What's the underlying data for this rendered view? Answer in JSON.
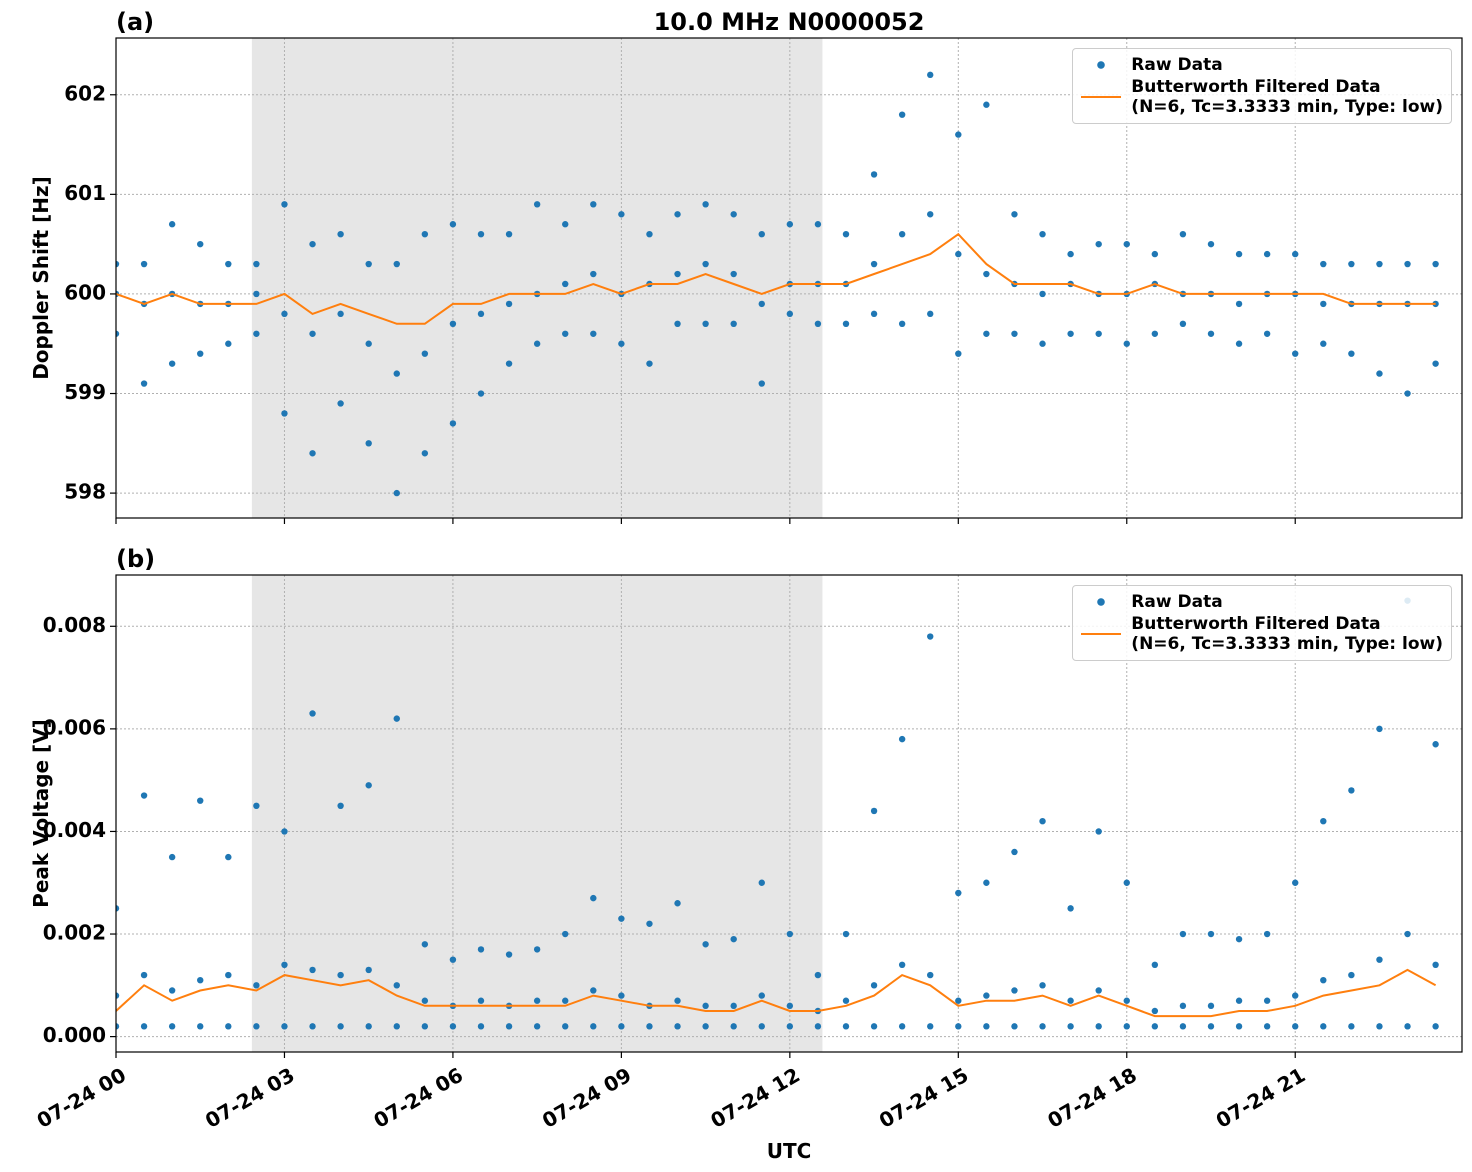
{
  "chart_data": [
    {
      "type": "scatter",
      "panel_label": "(a)",
      "title": "10.0 MHz N0000052",
      "y_label": "Doppler Shift [Hz]",
      "xlim": [
        0,
        23.97
      ],
      "xticks": [
        0,
        3,
        6,
        9,
        12,
        15,
        18,
        21
      ],
      "ylim": [
        597.75,
        602.57
      ],
      "yticks": [
        598,
        599,
        600,
        601,
        602
      ],
      "grid": true,
      "shaded_span": [
        2.42,
        12.58
      ],
      "legend": "upper right",
      "series": [
        {
          "name": "Raw Data",
          "style": "markers",
          "color": "#1f77b4",
          "x": [
            0,
            0,
            0,
            0.5,
            0.5,
            0.5,
            1,
            1,
            1,
            1.5,
            1.5,
            1.5,
            2,
            2,
            2,
            2.5,
            2.5,
            2.5,
            3,
            3,
            3,
            3.5,
            3.5,
            3.5,
            4,
            4,
            4,
            4.5,
            4.5,
            4.5,
            5,
            5,
            5,
            5.5,
            5.5,
            5.5,
            6,
            6,
            6,
            6.5,
            6.5,
            6.5,
            7,
            7,
            7,
            7.5,
            7.5,
            7.5,
            8,
            8,
            8,
            8.5,
            8.5,
            8.5,
            9,
            9,
            9,
            9.5,
            9.5,
            9.5,
            10,
            10,
            10,
            10.5,
            10.5,
            10.5,
            11,
            11,
            11,
            11.5,
            11.5,
            11.5,
            12,
            12,
            12,
            12.5,
            12.5,
            12.5,
            13,
            13,
            13,
            13.5,
            13.5,
            13.5,
            14,
            14,
            14,
            14.5,
            14.5,
            14.5,
            15,
            15,
            15,
            15.5,
            15.5,
            15.5,
            16,
            16,
            16,
            16.5,
            16.5,
            16.5,
            17,
            17,
            17,
            17.5,
            17.5,
            17.5,
            18,
            18,
            18,
            18.5,
            18.5,
            18.5,
            19,
            19,
            19,
            19.5,
            19.5,
            19.5,
            20,
            20,
            20,
            20.5,
            20.5,
            20.5,
            21,
            21,
            21,
            21.5,
            21.5,
            21.5,
            22,
            22,
            22,
            22.5,
            22.5,
            22.5,
            23,
            23,
            23,
            23.5,
            23.5,
            23.5
          ],
          "values": [
            600.3,
            600.0,
            599.6,
            600.3,
            599.9,
            599.1,
            600.7,
            600.0,
            599.3,
            600.5,
            599.9,
            599.4,
            600.3,
            599.9,
            599.5,
            600.3,
            600.0,
            599.6,
            600.9,
            599.8,
            598.8,
            600.5,
            599.6,
            598.4,
            600.6,
            599.8,
            598.9,
            600.3,
            599.5,
            598.5,
            600.3,
            599.2,
            598.0,
            600.6,
            599.4,
            598.4,
            600.7,
            599.7,
            598.7,
            600.6,
            599.8,
            599.0,
            600.6,
            599.9,
            599.3,
            600.9,
            600.0,
            599.5,
            600.7,
            600.1,
            599.6,
            600.9,
            600.2,
            599.6,
            600.8,
            600.0,
            599.5,
            600.6,
            600.1,
            599.3,
            600.8,
            600.2,
            599.7,
            600.9,
            600.3,
            599.7,
            600.8,
            600.2,
            599.7,
            600.6,
            599.9,
            599.1,
            600.7,
            600.1,
            599.8,
            600.7,
            600.1,
            599.7,
            600.6,
            600.1,
            599.7,
            601.2,
            600.3,
            599.8,
            601.8,
            600.6,
            599.7,
            602.2,
            600.8,
            599.8,
            601.6,
            600.4,
            599.4,
            601.9,
            600.2,
            599.6,
            600.8,
            600.1,
            599.6,
            600.6,
            600.0,
            599.5,
            600.4,
            600.1,
            599.6,
            600.5,
            600.0,
            599.6,
            600.5,
            600.0,
            599.5,
            600.4,
            600.1,
            599.6,
            600.6,
            600.0,
            599.7,
            600.5,
            600.0,
            599.6,
            600.4,
            599.9,
            599.5,
            600.4,
            600.0,
            599.6,
            600.4,
            600.0,
            599.4,
            600.3,
            599.9,
            599.5,
            600.3,
            599.9,
            599.4,
            600.3,
            599.9,
            599.2,
            600.3,
            599.9,
            599.0,
            600.3,
            599.9,
            599.3
          ]
        },
        {
          "name": "Butterworth Filtered Data\n(N=6, Tc=3.3333 min, Type: low)",
          "style": "line",
          "color": "#ff7f0e",
          "x": [
            0,
            0.5,
            1,
            1.5,
            2,
            2.5,
            3,
            3.5,
            4,
            4.5,
            5,
            5.5,
            6,
            6.5,
            7,
            7.5,
            8,
            8.5,
            9,
            9.5,
            10,
            10.5,
            11,
            11.5,
            12,
            12.5,
            13,
            13.5,
            14,
            14.5,
            15,
            15.5,
            16,
            16.5,
            17,
            17.5,
            18,
            18.5,
            19,
            19.5,
            20,
            20.5,
            21,
            21.5,
            22,
            22.5,
            23,
            23.5
          ],
          "values": [
            600.0,
            599.9,
            600.0,
            599.9,
            599.9,
            599.9,
            600.0,
            599.8,
            599.9,
            599.8,
            599.7,
            599.7,
            599.9,
            599.9,
            600.0,
            600.0,
            600.0,
            600.1,
            600.0,
            600.1,
            600.1,
            600.2,
            600.1,
            600.0,
            600.1,
            600.1,
            600.1,
            600.2,
            600.3,
            600.4,
            600.6,
            600.3,
            600.1,
            600.1,
            600.1,
            600.0,
            600.0,
            600.1,
            600.0,
            600.0,
            600.0,
            600.0,
            600.0,
            600.0,
            599.9,
            599.9,
            599.9,
            599.9
          ]
        }
      ]
    },
    {
      "type": "scatter",
      "panel_label": "(b)",
      "y_label": "Peak Voltage [V]",
      "x_label": "UTC",
      "xlim": [
        0,
        23.97
      ],
      "xticks": [
        {
          "value": 0,
          "label": "07-24 00"
        },
        {
          "value": 3,
          "label": "07-24 03"
        },
        {
          "value": 6,
          "label": "07-24 06"
        },
        {
          "value": 9,
          "label": "07-24 09"
        },
        {
          "value": 12,
          "label": "07-24 12"
        },
        {
          "value": 15,
          "label": "07-24 15"
        },
        {
          "value": 18,
          "label": "07-24 18"
        },
        {
          "value": 21,
          "label": "07-24 21"
        }
      ],
      "ylim": [
        -0.0003,
        0.009
      ],
      "yticks": [
        {
          "value": 0,
          "label": "0.000"
        },
        {
          "value": 0.002,
          "label": "0.002"
        },
        {
          "value": 0.004,
          "label": "0.004"
        },
        {
          "value": 0.006,
          "label": "0.006"
        },
        {
          "value": 0.008,
          "label": "0.008"
        }
      ],
      "grid": true,
      "shaded_span": [
        2.42,
        12.58
      ],
      "legend": "upper right",
      "series": [
        {
          "name": "Raw Data",
          "style": "markers",
          "color": "#1f77b4",
          "x": [
            0,
            0,
            0,
            0.5,
            0.5,
            0.5,
            1,
            1,
            1,
            1.5,
            1.5,
            1.5,
            2,
            2,
            2,
            2.5,
            2.5,
            2.5,
            3,
            3,
            3,
            3.5,
            3.5,
            3.5,
            4,
            4,
            4,
            4.5,
            4.5,
            4.5,
            5,
            5,
            5,
            5.5,
            5.5,
            5.5,
            6,
            6,
            6,
            6.5,
            6.5,
            6.5,
            7,
            7,
            7,
            7.5,
            7.5,
            7.5,
            8,
            8,
            8,
            8.5,
            8.5,
            8.5,
            9,
            9,
            9,
            9.5,
            9.5,
            9.5,
            10,
            10,
            10,
            10.5,
            10.5,
            10.5,
            11,
            11,
            11,
            11.5,
            11.5,
            11.5,
            12,
            12,
            12,
            12.5,
            12.5,
            12.5,
            13,
            13,
            13,
            13.5,
            13.5,
            13.5,
            14,
            14,
            14,
            14.5,
            14.5,
            14.5,
            15,
            15,
            15,
            15.5,
            15.5,
            15.5,
            16,
            16,
            16,
            16.5,
            16.5,
            16.5,
            17,
            17,
            17,
            17.5,
            17.5,
            17.5,
            18,
            18,
            18,
            18.5,
            18.5,
            18.5,
            19,
            19,
            19,
            19.5,
            19.5,
            19.5,
            20,
            20,
            20,
            20.5,
            20.5,
            20.5,
            21,
            21,
            21,
            21.5,
            21.5,
            21.5,
            22,
            22,
            22,
            22.5,
            22.5,
            22.5,
            23,
            23,
            23,
            23.5,
            23.5,
            23.5
          ],
          "values": [
            0.0025,
            0.0008,
            0.0002,
            0.0047,
            0.0012,
            0.0002,
            0.0035,
            0.0009,
            0.0002,
            0.0046,
            0.0011,
            0.0002,
            0.0035,
            0.0012,
            0.0002,
            0.0045,
            0.001,
            0.0002,
            0.004,
            0.0014,
            0.0002,
            0.0063,
            0.0013,
            0.0002,
            0.0045,
            0.0012,
            0.0002,
            0.0049,
            0.0013,
            0.0002,
            0.0062,
            0.001,
            0.0002,
            0.0018,
            0.0007,
            0.0002,
            0.0015,
            0.0006,
            0.0002,
            0.0017,
            0.0007,
            0.0002,
            0.0016,
            0.0006,
            0.0002,
            0.0017,
            0.0007,
            0.0002,
            0.002,
            0.0007,
            0.0002,
            0.0027,
            0.0009,
            0.0002,
            0.0023,
            0.0008,
            0.0002,
            0.0022,
            0.0006,
            0.0002,
            0.0026,
            0.0007,
            0.0002,
            0.0018,
            0.0006,
            0.0002,
            0.0019,
            0.0006,
            0.0002,
            0.003,
            0.0008,
            0.0002,
            0.002,
            0.0006,
            0.0002,
            0.0012,
            0.0005,
            0.0002,
            0.002,
            0.0007,
            0.0002,
            0.0044,
            0.001,
            0.0002,
            0.0058,
            0.0014,
            0.0002,
            0.0078,
            0.0012,
            0.0002,
            0.0028,
            0.0007,
            0.0002,
            0.003,
            0.0008,
            0.0002,
            0.0036,
            0.0009,
            0.0002,
            0.0042,
            0.001,
            0.0002,
            0.0025,
            0.0007,
            0.0002,
            0.004,
            0.0009,
            0.0002,
            0.003,
            0.0007,
            0.0002,
            0.0014,
            0.0005,
            0.0002,
            0.002,
            0.0006,
            0.0002,
            0.002,
            0.0006,
            0.0002,
            0.0019,
            0.0007,
            0.0002,
            0.002,
            0.0007,
            0.0002,
            0.003,
            0.0008,
            0.0002,
            0.0042,
            0.0011,
            0.0002,
            0.0048,
            0.0012,
            0.0002,
            0.006,
            0.0015,
            0.0002,
            0.0085,
            0.002,
            0.0002,
            0.0057,
            0.0014,
            0.0002
          ]
        },
        {
          "name": "Butterworth Filtered Data\n(N=6, Tc=3.3333 min, Type: low)",
          "style": "line",
          "color": "#ff7f0e",
          "x": [
            0,
            0.5,
            1,
            1.5,
            2,
            2.5,
            3,
            3.5,
            4,
            4.5,
            5,
            5.5,
            6,
            6.5,
            7,
            7.5,
            8,
            8.5,
            9,
            9.5,
            10,
            10.5,
            11,
            11.5,
            12,
            12.5,
            13,
            13.5,
            14,
            14.5,
            15,
            15.5,
            16,
            16.5,
            17,
            17.5,
            18,
            18.5,
            19,
            19.5,
            20,
            20.5,
            21,
            21.5,
            22,
            22.5,
            23,
            23.5
          ],
          "values": [
            0.0005,
            0.001,
            0.0007,
            0.0009,
            0.001,
            0.0009,
            0.0012,
            0.0011,
            0.001,
            0.0011,
            0.0008,
            0.0006,
            0.0006,
            0.0006,
            0.0006,
            0.0006,
            0.0006,
            0.0008,
            0.0007,
            0.0006,
            0.0006,
            0.0005,
            0.0005,
            0.0007,
            0.0005,
            0.0005,
            0.0006,
            0.0008,
            0.0012,
            0.001,
            0.0006,
            0.0007,
            0.0007,
            0.0008,
            0.0006,
            0.0008,
            0.0006,
            0.0004,
            0.0004,
            0.0004,
            0.0005,
            0.0005,
            0.0006,
            0.0008,
            0.0009,
            0.001,
            0.0013,
            0.001
          ]
        }
      ]
    }
  ]
}
